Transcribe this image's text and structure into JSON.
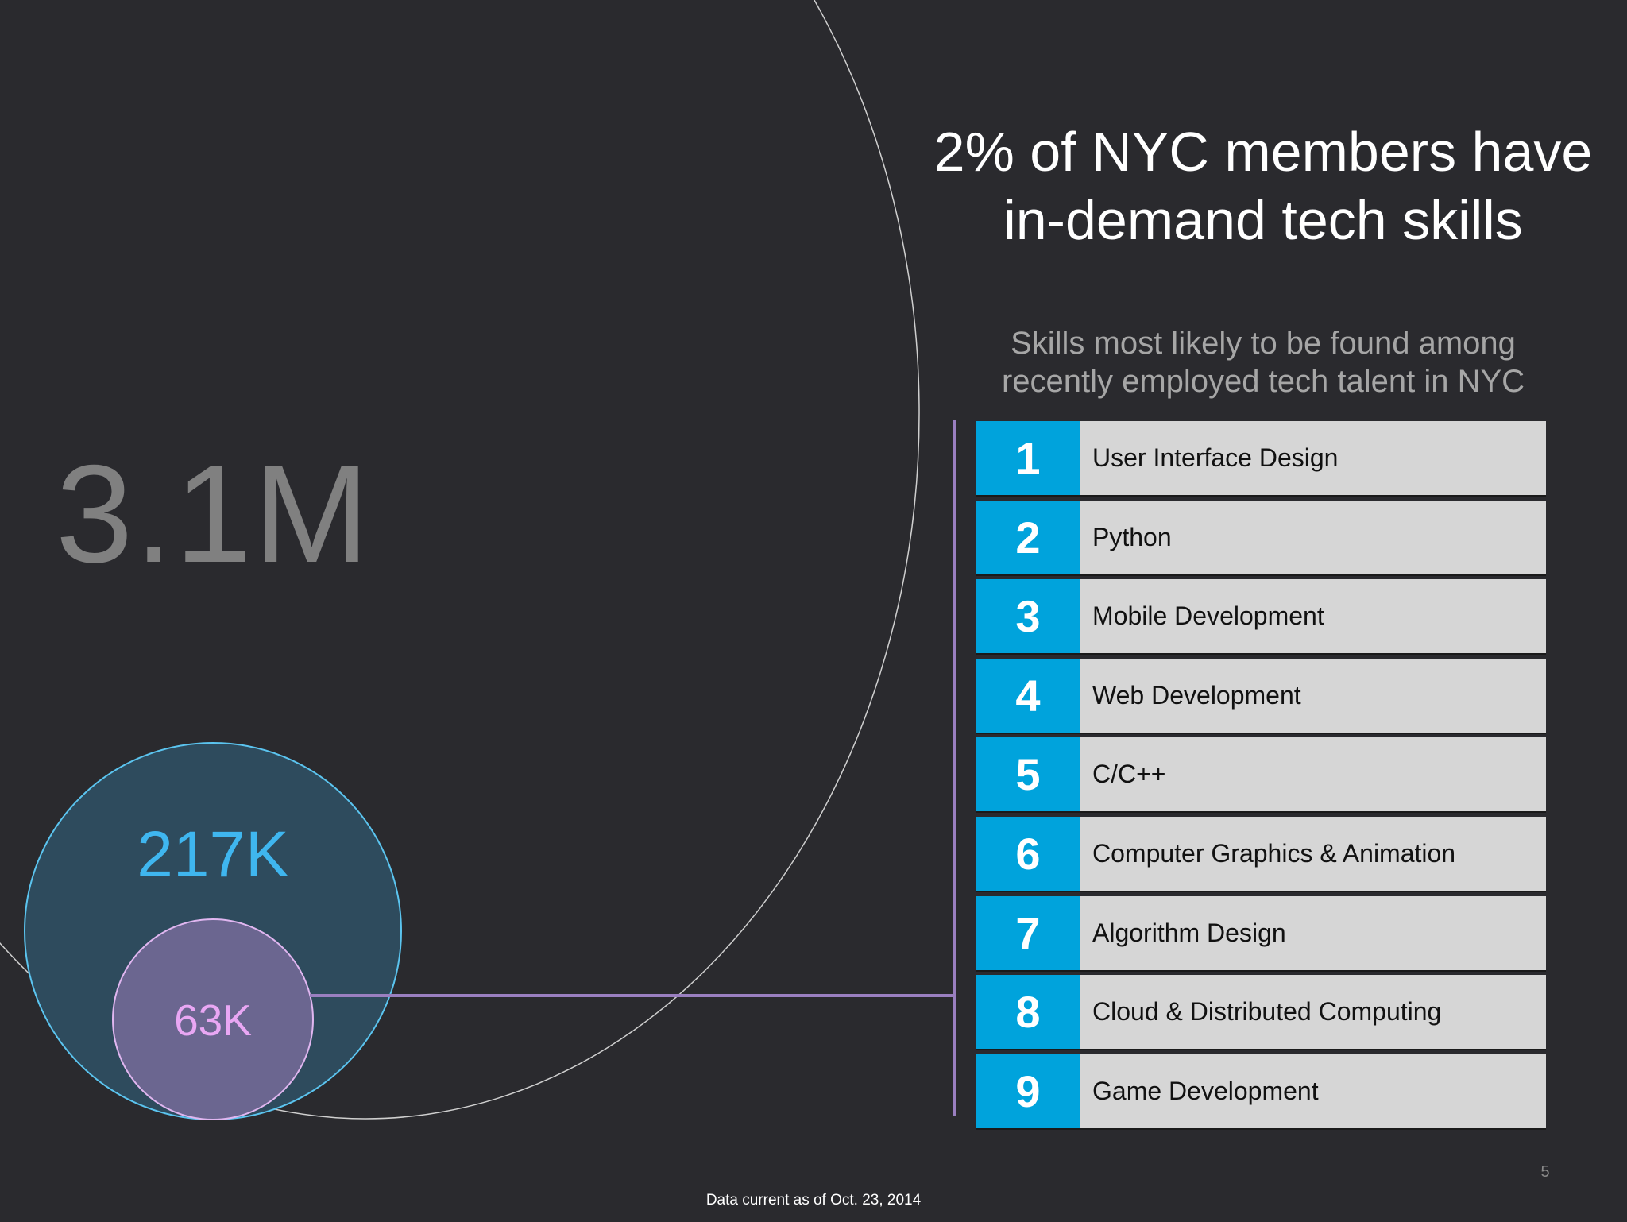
{
  "title_lines": [
    "2% of NYC members have",
    "in-demand tech skills"
  ],
  "subtitle_lines": [
    "Skills most likely to be found among",
    "recently employed tech talent in NYC"
  ],
  "circles": {
    "all_members": "3.1M",
    "tech_talent": "217K",
    "in_demand": "63K"
  },
  "skills": [
    {
      "rank": "1",
      "name": "User Interface Design"
    },
    {
      "rank": "2",
      "name": "Python"
    },
    {
      "rank": "3",
      "name": "Mobile Development"
    },
    {
      "rank": "4",
      "name": "Web Development"
    },
    {
      "rank": "5",
      "name": "C/C++"
    },
    {
      "rank": "6",
      "name": "Computer Graphics & Animation"
    },
    {
      "rank": "7",
      "name": "Algorithm Design"
    },
    {
      "rank": "8",
      "name": "Cloud & Distributed Computing"
    },
    {
      "rank": "9",
      "name": "Game Development"
    }
  ],
  "footnote": "Data current as of Oct. 23, 2014",
  "page_number": "5",
  "colors": {
    "background": "#2a2a2e",
    "rank_blue": "#00a3dc",
    "skill_gray": "#d6d6d6",
    "connector_purple": "#9a7fc0"
  }
}
